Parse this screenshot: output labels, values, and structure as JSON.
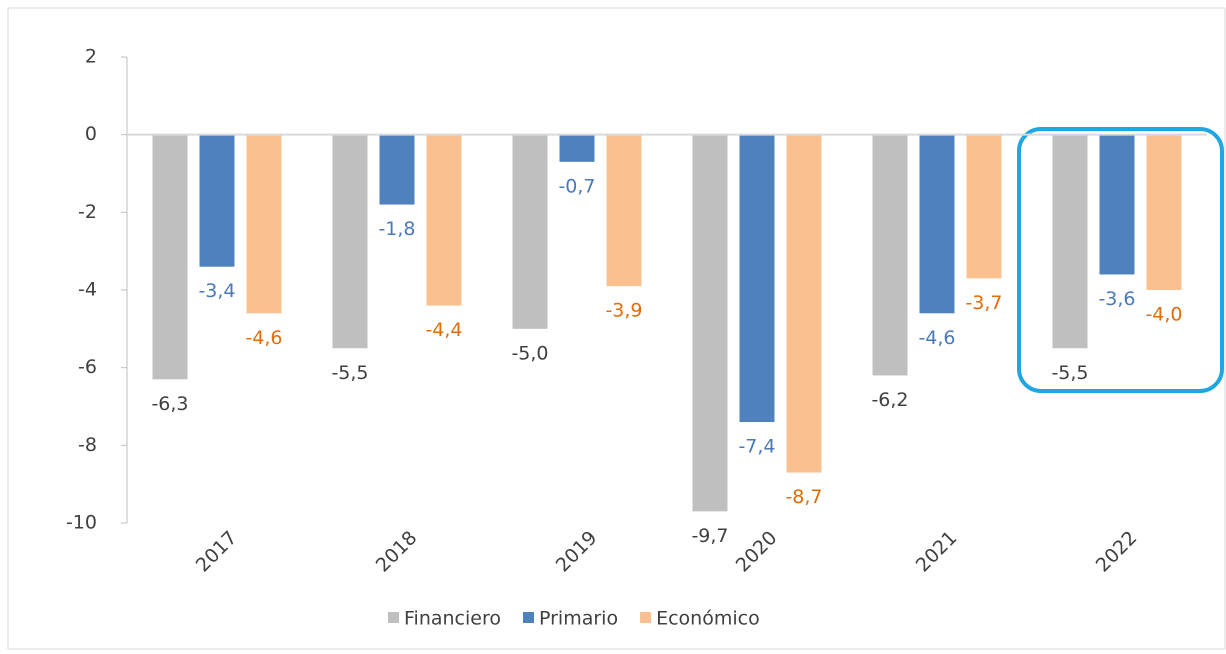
{
  "chart_data": {
    "type": "bar",
    "categories": [
      "2017",
      "2018",
      "2019",
      "2020",
      "2021",
      "2022"
    ],
    "series": [
      {
        "name": "Financiero",
        "color": "#bfbfbf",
        "label_color": "#404040",
        "values": [
          -6.3,
          -5.5,
          -5.0,
          -9.7,
          -6.2,
          -5.5
        ],
        "value_labels": [
          "-6,3",
          "-5,5",
          "-5,0",
          "-9,7",
          "-6,2",
          "-5,5"
        ]
      },
      {
        "name": "Primario",
        "color": "#4f81bd",
        "label_color": "#4a7ab8",
        "values": [
          -3.4,
          -1.8,
          -0.7,
          -7.4,
          -4.6,
          -3.6
        ],
        "value_labels": [
          "-3,4",
          "-1,8",
          "-0,7",
          "-7,4",
          "-4,6",
          "-3,6"
        ]
      },
      {
        "name": "Económico",
        "color": "#fac090",
        "label_color": "#e36c09",
        "values": [
          -4.6,
          -4.4,
          -3.9,
          -8.7,
          -3.7,
          -4.0
        ],
        "value_labels": [
          "-4,6",
          "-4,4",
          "-3,9",
          "-8,7",
          "-3,7",
          "-4,0"
        ]
      }
    ],
    "ylim": [
      -10,
      2
    ],
    "yticks": [
      -10,
      -8,
      -6,
      -4,
      -2,
      0,
      2
    ],
    "grid": false,
    "legend": "bottom"
  }
}
